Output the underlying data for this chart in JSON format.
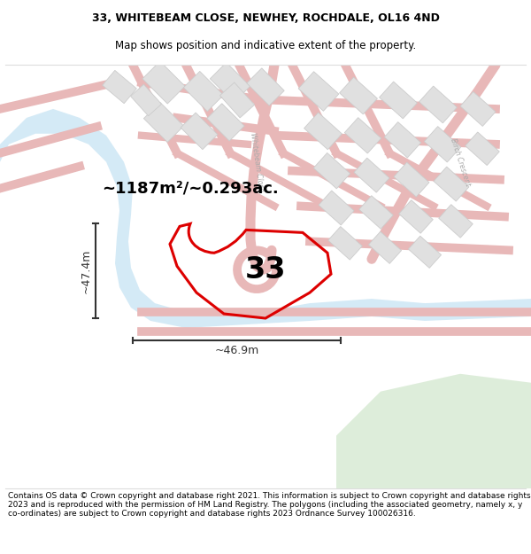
{
  "title_line1": "33, WHITEBEAM CLOSE, NEWHEY, ROCHDALE, OL16 4ND",
  "title_line2": "Map shows position and indicative extent of the property.",
  "footer": "Contains OS data © Crown copyright and database right 2021. This information is subject to Crown copyright and database rights 2023 and is reproduced with the permission of HM Land Registry. The polygons (including the associated geometry, namely x, y co-ordinates) are subject to Crown copyright and database rights 2023 Ordnance Survey 100026316.",
  "area_label": "~1187m²/~0.293ac.",
  "property_number": "33",
  "width_label": "~46.9m",
  "height_label": "~47.4m",
  "bg_color": "#ffffff",
  "road_outline_color": "#e8b8b8",
  "road_fill_color": "#f8f0f0",
  "building_color": "#e0e0e0",
  "building_edge_color": "#cccccc",
  "river_color": "#d0e8f5",
  "river_edge_color": "#b8d8ec",
  "green_color": "#d8ead4",
  "plot_outline_color": "#dd0000",
  "dimension_color": "#333333",
  "street_label_color": "#aaaaaa",
  "title_fontsize": 9.0,
  "footer_fontsize": 6.5,
  "area_fontsize": 13,
  "number_fontsize": 24,
  "dim_fontsize": 9,
  "street_fontsize": 5.5
}
